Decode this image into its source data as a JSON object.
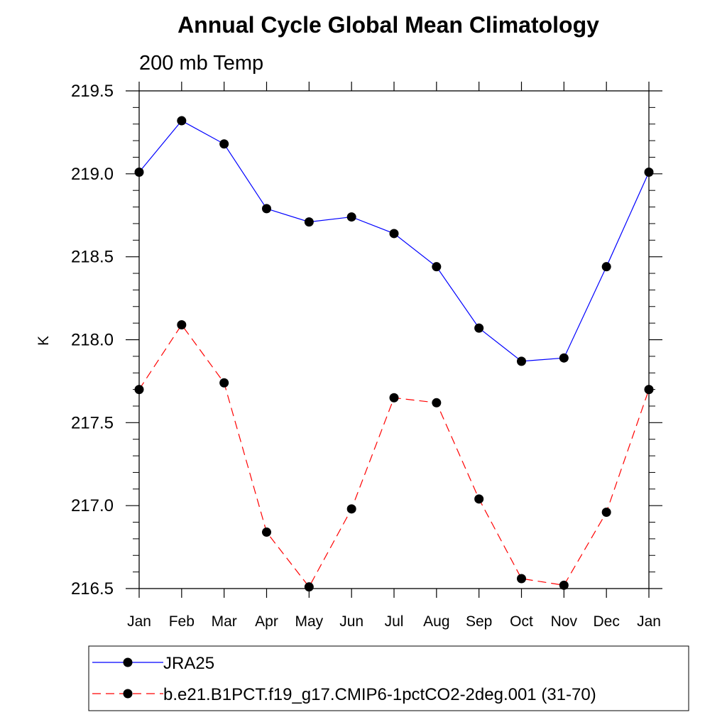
{
  "chart_data": {
    "type": "line",
    "title": "Annual Cycle Global Mean Climatology",
    "subtitle": "200 mb Temp",
    "xlabel": "",
    "ylabel": "K",
    "categories": [
      "Jan",
      "Feb",
      "Mar",
      "Apr",
      "May",
      "Jun",
      "Jul",
      "Aug",
      "Sep",
      "Oct",
      "Nov",
      "Dec",
      "Jan"
    ],
    "ylim": [
      216.5,
      219.5
    ],
    "yticks": [
      216.5,
      217.0,
      217.5,
      218.0,
      218.5,
      219.0,
      219.5
    ],
    "ytick_labels": [
      "216.5",
      "217.0",
      "217.5",
      "218.0",
      "218.5",
      "219.0",
      "219.5"
    ],
    "series": [
      {
        "name": "JRA25",
        "color": "#0000ff",
        "line_style": "solid",
        "values": [
          219.01,
          219.32,
          219.18,
          218.79,
          218.71,
          218.74,
          218.64,
          218.44,
          218.07,
          217.87,
          217.89,
          218.44,
          219.01
        ]
      },
      {
        "name": "b.e21.B1PCT.f19_g17.CMIP6-1pctCO2-2deg.001 (31-70)",
        "color": "#ff0000",
        "line_style": "dashed",
        "values": [
          217.7,
          218.09,
          217.74,
          216.84,
          216.51,
          216.98,
          217.65,
          217.62,
          217.04,
          216.56,
          216.52,
          216.96,
          217.7
        ]
      }
    ],
    "grid": false,
    "legend": "bottom"
  }
}
